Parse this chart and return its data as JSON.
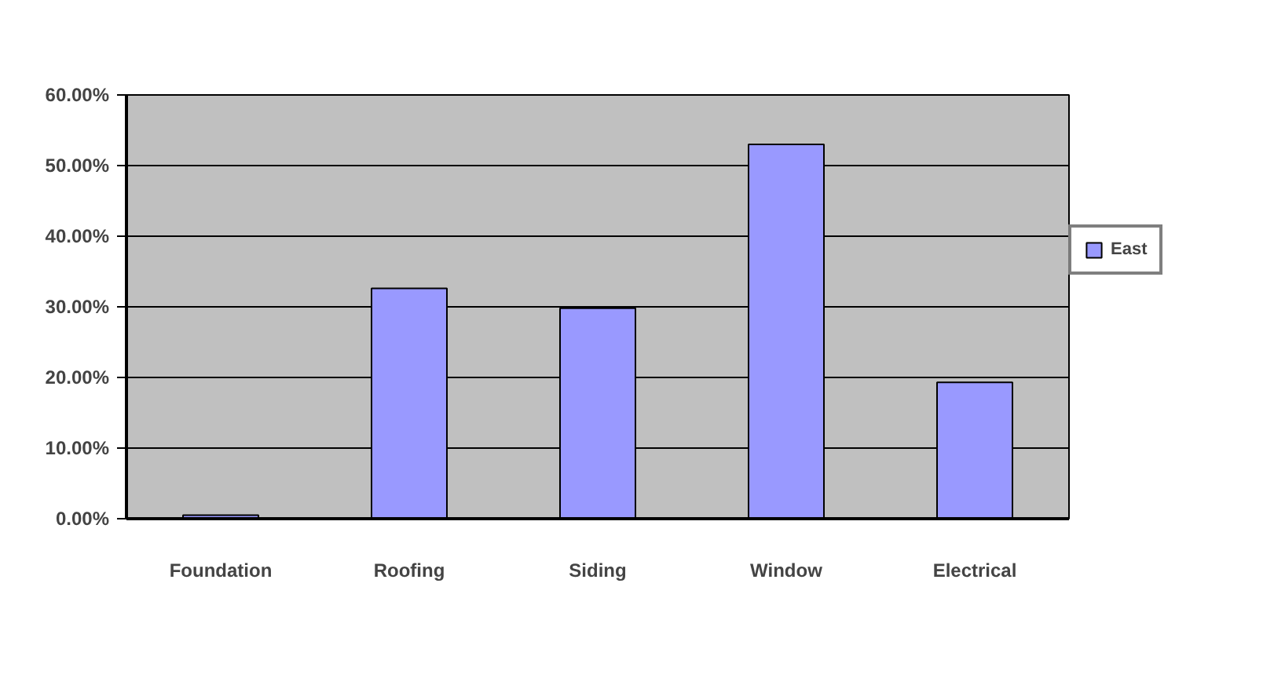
{
  "chart_data": {
    "type": "bar",
    "categories": [
      "Foundation",
      "Roofing",
      "Siding",
      "Window",
      "Electrical"
    ],
    "series": [
      {
        "name": "East",
        "color": "#9999ff",
        "values": [
          0.5,
          32.6,
          29.8,
          53,
          19.3
        ]
      }
    ],
    "ylim": [
      0,
      60
    ],
    "yticks": [
      {
        "value": 0,
        "label": "0.00%"
      },
      {
        "value": 10,
        "label": "10.00%"
      },
      {
        "value": 20,
        "label": "20.00%"
      },
      {
        "value": 30,
        "label": "30.00%"
      },
      {
        "value": 40,
        "label": "40.00%"
      },
      {
        "value": 50,
        "label": "50.00%"
      },
      {
        "value": 60,
        "label": "60.00%"
      }
    ],
    "grid": "y",
    "legend": "right"
  }
}
